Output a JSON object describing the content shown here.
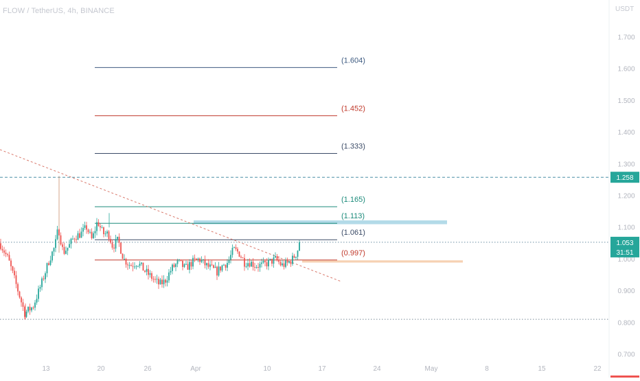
{
  "header": {
    "symbol": "FLOW / TetherUS, 4h, BINANCE",
    "currency": "USDT"
  },
  "colors": {
    "up": "#26a69a",
    "down": "#ef5350",
    "axis_text": "#b2b5be",
    "grid_text": "#c4c7cf",
    "price_badge": "#26a69a",
    "resistance_badge": "#26a69a",
    "fib_blue": "#3d5a80",
    "fib_red": "#c0392b",
    "fib_teal": "#1b8a7a",
    "fib_gray": "#3a4a66",
    "zone_blue": "#a6d4e4",
    "zone_orange": "#f4c9a6",
    "trendline": "#d9786b",
    "pivot_line": "#d4a48a"
  },
  "chart_data": {
    "type": "candlestick",
    "y_axis": {
      "ticks": [
        "1.700",
        "1.600",
        "1.500",
        "1.400",
        "1.300",
        "1.200",
        "1.100",
        "1.000",
        "0.900",
        "0.800",
        "0.700"
      ],
      "tick_values": [
        1.7,
        1.6,
        1.5,
        1.4,
        1.3,
        1.2,
        1.1,
        1.0,
        0.9,
        0.8,
        0.7
      ],
      "range": [
        0.693,
        1.82
      ]
    },
    "x_axis": {
      "ticks": [
        "13",
        "20",
        "26",
        "Apr",
        "10",
        "17",
        "24",
        "May",
        "8",
        "15",
        "22"
      ]
    },
    "price_badge": {
      "value": "1.053",
      "countdown": "31:51"
    },
    "resistance_badge": {
      "value": "1.258"
    },
    "horizontal_levels": [
      {
        "label": "(1.604)",
        "value": 1.604,
        "color": "fib_blue"
      },
      {
        "label": "(1.452)",
        "value": 1.452,
        "color": "fib_red"
      },
      {
        "label": "(1.333)",
        "value": 1.333,
        "color": "fib_gray"
      },
      {
        "label": "(1.165)",
        "value": 1.165,
        "color": "fib_teal"
      },
      {
        "label": "(1.113)",
        "value": 1.113,
        "color": "fib_teal"
      },
      {
        "label": "(1.061)",
        "value": 1.061,
        "color": "fib_gray"
      },
      {
        "label": "(0.997)",
        "value": 0.997,
        "color": "fib_red"
      }
    ],
    "dotted_levels": [
      1.258,
      1.053,
      0.81
    ],
    "zones": [
      {
        "name": "blue-zone",
        "y_high": 1.122,
        "y_low": 1.11
      },
      {
        "name": "orange-zone",
        "y_high": 0.996,
        "y_low": 0.989
      }
    ],
    "trendline": {
      "from_price": 1.345,
      "to_price": 0.93
    },
    "key_points": [
      {
        "label": "start",
        "price": 1.05
      },
      {
        "label": "low",
        "price": 0.81
      },
      {
        "label": "spike-high",
        "price": 1.26
      },
      {
        "label": "local-high",
        "price": 1.145
      },
      {
        "label": "range-low",
        "price": 0.9
      },
      {
        "label": "last",
        "price": 1.053
      }
    ]
  }
}
